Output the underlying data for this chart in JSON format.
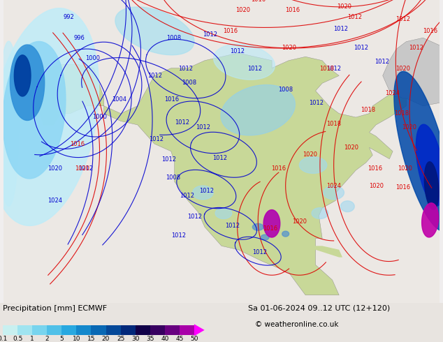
{
  "title_left": "Precipitation [mm] ECMWF",
  "title_right": "Sa 01-06-2024 09..12 UTC (12+120)",
  "copyright": "© weatheronline.co.uk",
  "colorbar_labels": [
    "0.1",
    "0.5",
    "1",
    "2",
    "5",
    "10",
    "15",
    "20",
    "25",
    "30",
    "35",
    "40",
    "45",
    "50"
  ],
  "colorbar_colors": [
    "#c8f0f0",
    "#a0e4f0",
    "#78d4ee",
    "#50c0e8",
    "#28a8e0",
    "#1488cc",
    "#0868b4",
    "#044898",
    "#02287a",
    "#100048",
    "#380060",
    "#680080",
    "#a800a8",
    "#ff00ff"
  ],
  "bg_color": "#f0eeee",
  "ocean_color": "#d8e8f0",
  "land_color": "#c8d898",
  "precip_light": "#b0e8f8",
  "precip_mid": "#78c8f0",
  "precip_dark": "#2060c0",
  "precip_deep": "#001880"
}
